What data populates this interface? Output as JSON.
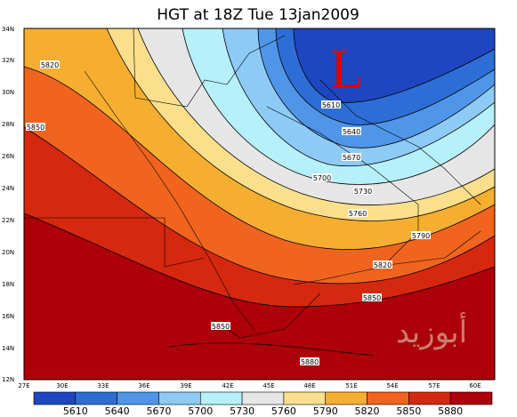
{
  "title": "HGT at 18Z Tue 13jan2009",
  "low_marker": "L",
  "watermark": "أبوزيد",
  "lat_labels": [
    "34N",
    "32N",
    "30N",
    "28N",
    "26N",
    "24N",
    "22N",
    "20N",
    "18N",
    "16N",
    "14N",
    "12N"
  ],
  "lon_labels": [
    "27E",
    "30E",
    "33E",
    "36E",
    "39E",
    "42E",
    "45E",
    "48E",
    "51E",
    "54E",
    "57E",
    "60E"
  ],
  "contour_labels": [
    "5820",
    "5850",
    "5610",
    "5640",
    "5670",
    "5700",
    "5730",
    "5760",
    "5790",
    "5820",
    "5850",
    "5850",
    "5880"
  ],
  "colorbar": {
    "labels": [
      "5610",
      "5640",
      "5670",
      "5700",
      "5730",
      "5760",
      "5790",
      "5820",
      "5850",
      "5880"
    ],
    "colors": [
      "#1e46c0",
      "#2d6ed6",
      "#5096e8",
      "#8ecaf6",
      "#b6f0fb",
      "#e6e6e6",
      "#fbdf8c",
      "#f6ae30",
      "#f0641e",
      "#d6280f",
      "#ad0008"
    ]
  }
}
